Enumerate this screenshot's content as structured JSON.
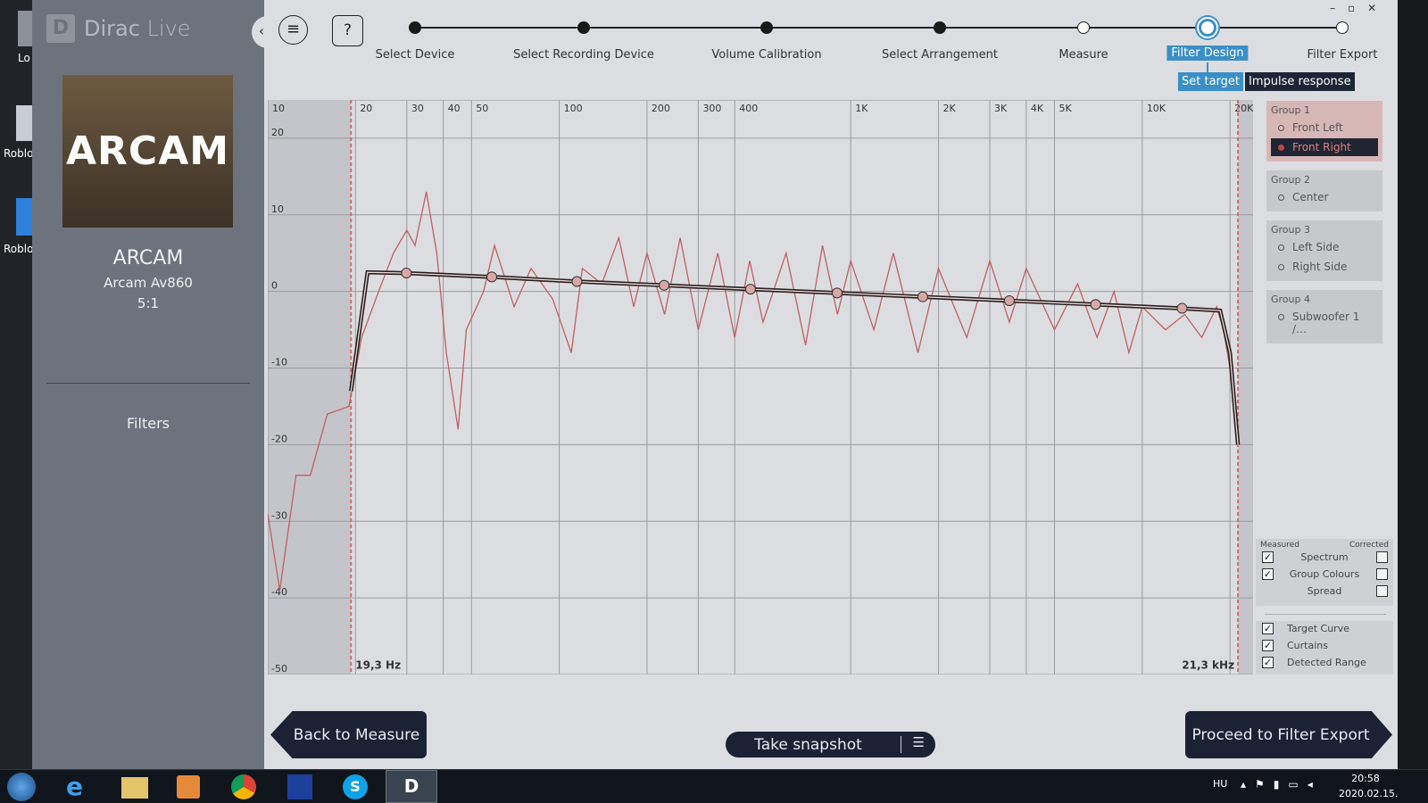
{
  "desktop": {
    "icons": [
      "Lo",
      "Roblo",
      "Roblo"
    ]
  },
  "sidebar": {
    "app_name": "Dirac",
    "app_suffix": "Live",
    "logo_text": "ARCAM",
    "device_brand": "ARCAM",
    "device_model": "Arcam Av860",
    "device_config": "5:1",
    "menu": [
      "Filters"
    ]
  },
  "toolbar": {
    "help": "?"
  },
  "steps": [
    {
      "label": "Select Device",
      "state": "done"
    },
    {
      "label": "Select Recording Device",
      "state": "done"
    },
    {
      "label": "Volume Calibration",
      "state": "done"
    },
    {
      "label": "Select Arrangement",
      "state": "done"
    },
    {
      "label": "Measure",
      "state": "todo"
    },
    {
      "label": "Filter Design",
      "state": "active"
    },
    {
      "label": "Filter Export",
      "state": "todo"
    }
  ],
  "tabs": [
    {
      "label": "Set target",
      "active": true
    },
    {
      "label": "Impulse response",
      "active": false
    }
  ],
  "chart_data": {
    "type": "line",
    "xscale": "log",
    "xlim": [
      10,
      24000
    ],
    "ylim": [
      -50,
      25
    ],
    "grid": true,
    "xticks": [
      10,
      20,
      30,
      40,
      50,
      100,
      200,
      300,
      400,
      {
        "value": 1000,
        "label": "1K"
      },
      {
        "value": 2000,
        "label": "2K"
      },
      {
        "value": 3000,
        "label": "3K"
      },
      {
        "value": 4000,
        "label": "4K"
      },
      {
        "value": 5000,
        "label": "5K"
      },
      {
        "value": 10000,
        "label": "10K"
      },
      {
        "value": 20000,
        "label": "20K"
      }
    ],
    "yticks": [
      20,
      10,
      0,
      -10,
      -20,
      -30,
      -40,
      -50
    ],
    "curtains": [
      {
        "value": 19.3,
        "label": "19,3 Hz"
      },
      {
        "value": 21300,
        "label": "21,3 kHz"
      }
    ],
    "series": [
      {
        "style": "line",
        "color": "#c0605f",
        "x": [
          10,
          11,
          12.5,
          14,
          16,
          19,
          21,
          24,
          27,
          30,
          32,
          35,
          38,
          41,
          45,
          48,
          55,
          60,
          70,
          80,
          95,
          110,
          120,
          140,
          160,
          180,
          200,
          230,
          260,
          300,
          350,
          400,
          450,
          500,
          600,
          700,
          800,
          900,
          1000,
          1200,
          1400,
          1700,
          2000,
          2500,
          3000,
          3500,
          4000,
          5000,
          6000,
          7000,
          8000,
          9000,
          10000,
          12000,
          14000,
          16000,
          18000,
          19000,
          20000,
          21000,
          21300
        ],
        "values": [
          -29,
          -39,
          -24,
          -24,
          -16,
          -15,
          -6,
          0,
          5,
          8,
          6,
          13,
          5,
          -8,
          -18,
          -5,
          0,
          6,
          -2,
          3,
          -1,
          -8,
          3,
          1,
          7,
          -2,
          5,
          -3,
          7,
          -5,
          5,
          -6,
          4,
          -4,
          5,
          -7,
          6,
          -3,
          4,
          -5,
          5,
          -8,
          3,
          -6,
          4,
          -4,
          3,
          -5,
          1,
          -6,
          0,
          -8,
          -2,
          -5,
          -3,
          -6,
          -2,
          -5,
          -10,
          -16,
          -20
        ]
      },
      {
        "style": "line",
        "color": "#2a1e1e",
        "x": [
          19.3,
          22,
          29.9,
          58.7,
          115,
          229,
          453,
          898,
          1766,
          3500,
          6920,
          13700,
          18500,
          20000,
          21300
        ],
        "values": [
          -13,
          2.5,
          2.4,
          1.9,
          1.3,
          0.8,
          0.3,
          -0.2,
          -0.7,
          -1.2,
          -1.7,
          -2.2,
          -2.5,
          -8,
          -20
        ]
      },
      {
        "style": "markers",
        "color": "#d9a8a4",
        "x": [
          29.9,
          58.7,
          115,
          229,
          453,
          898,
          1766,
          3500,
          6920,
          13700
        ],
        "values": [
          2.4,
          1.9,
          1.3,
          0.8,
          0.3,
          -0.2,
          -0.7,
          -1.2,
          -1.7,
          -2.2
        ]
      }
    ]
  },
  "groups": [
    {
      "title": "Group 1",
      "channels": [
        {
          "name": "Front Left",
          "selected": false
        },
        {
          "name": "Front Right",
          "selected": true
        }
      ]
    },
    {
      "title": "Group 2",
      "channels": [
        {
          "name": "Center",
          "selected": false
        }
      ]
    },
    {
      "title": "Group 3",
      "channels": [
        {
          "name": "Left Side",
          "selected": false
        },
        {
          "name": "Right Side",
          "selected": false
        }
      ]
    },
    {
      "title": "Group 4",
      "channels": [
        {
          "name": "Subwoofer 1 /…",
          "selected": false
        }
      ]
    }
  ],
  "display_options": {
    "columns": [
      "Measured",
      "Corrected"
    ],
    "rows": [
      {
        "label": "Spectrum",
        "measured": true,
        "corrected": false
      },
      {
        "label": "Group Colours",
        "measured": true,
        "corrected": false
      },
      {
        "label": "Spread",
        "corrected": false
      }
    ]
  },
  "overlay_options": [
    {
      "label": "Target Curve",
      "checked": true
    },
    {
      "label": "Curtains",
      "checked": true
    },
    {
      "label": "Detected Range",
      "checked": true
    }
  ],
  "buttons": {
    "back": "Back to Measure",
    "snapshot": "Take snapshot",
    "proceed": "Proceed to Filter Export"
  },
  "taskbar": {
    "language": "HU",
    "time": "20:58",
    "date": "2020.02.15."
  }
}
